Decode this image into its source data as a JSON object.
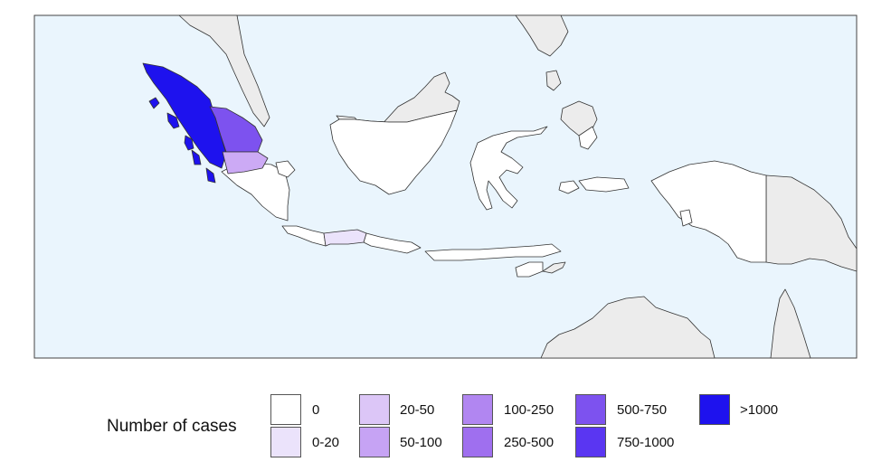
{
  "legend": {
    "title": "Number of cases",
    "bins": [
      {
        "label": "0",
        "color": "#ffffff"
      },
      {
        "label": "0-20",
        "color": "#ebe3fb"
      },
      {
        "label": "20-50",
        "color": "#dcc6f7"
      },
      {
        "label": "50-100",
        "color": "#c6a3f4"
      },
      {
        "label": "100-250",
        "color": "#b186f1"
      },
      {
        "label": "250-500",
        "color": "#9f6fef"
      },
      {
        "label": "500-750",
        "color": "#7d52ef"
      },
      {
        "label": "750-1000",
        "color": "#5a36f2"
      },
      {
        "label": ">1000",
        "color": "#1e12ee"
      }
    ]
  },
  "colors": {
    "ocean": "#eaf5fd",
    "neighbor_land": "#ececec",
    "border": "#333333"
  }
}
